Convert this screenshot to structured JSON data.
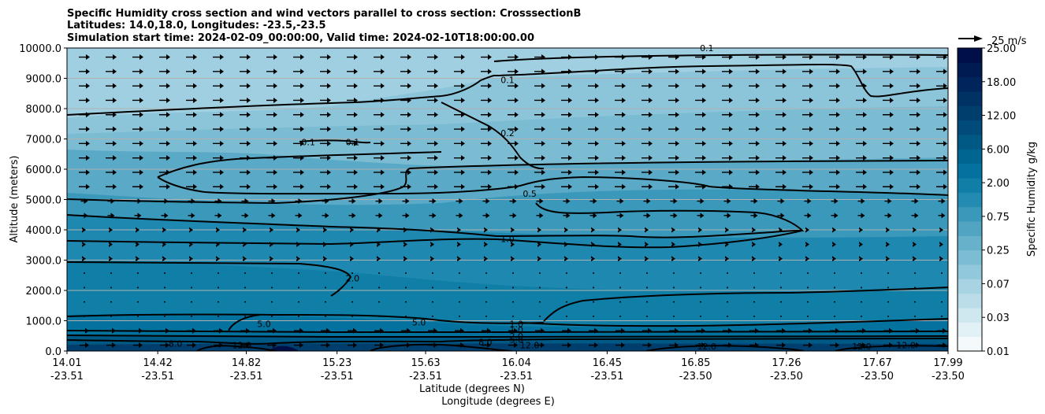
{
  "chart_data": {
    "type": "contour",
    "title_lines": [
      "Specific Humidity cross section and wind vectors parallel to cross section: CrosssectionB",
      "Latitudes: 14.0,18.0, Longitudes: -23.5,-23.5",
      "Simulation start time: 2024-02-09_00:00:00, Valid time: 2024-02-10T18:00:00.00"
    ],
    "ylabel": "Altitude (meters)",
    "xlabel_lines": [
      "Latitude (degrees N)",
      "Longitude (degrees E)"
    ],
    "ylim": [
      0,
      10000
    ],
    "y_ticks": [
      0,
      1000,
      2000,
      3000,
      4000,
      5000,
      6000,
      7000,
      8000,
      9000,
      10000
    ],
    "y_tick_labels": [
      "0.0",
      "1000.0",
      "2000.0",
      "3000.0",
      "4000.0",
      "5000.0",
      "6000.0",
      "7000.0",
      "8000.0",
      "9000.0",
      "10000.0"
    ],
    "x_ticks": [
      {
        "lat": "14.01",
        "lon": "-23.51"
      },
      {
        "lat": "14.42",
        "lon": "-23.51"
      },
      {
        "lat": "14.82",
        "lon": "-23.51"
      },
      {
        "lat": "15.23",
        "lon": "-23.51"
      },
      {
        "lat": "15.63",
        "lon": "-23.51"
      },
      {
        "lat": "16.04",
        "lon": "-23.51"
      },
      {
        "lat": "16.45",
        "lon": "-23.51"
      },
      {
        "lat": "16.85",
        "lon": "-23.50"
      },
      {
        "lat": "17.26",
        "lon": "-23.50"
      },
      {
        "lat": "17.67",
        "lon": "-23.50"
      },
      {
        "lat": "17.99",
        "lon": "-23.50"
      }
    ],
    "grid": "horizontal",
    "colorbar": {
      "label": "Specific Humidity g/kg",
      "tick_labels": [
        "25.00",
        "18.00",
        "12.00",
        "6.00",
        "2.00",
        "0.75",
        "0.25",
        "0.07",
        "0.03",
        "0.01"
      ],
      "colors": [
        "#f4fafc",
        "#e2f1f6",
        "#cfe7ef",
        "#bbdde9",
        "#a7d3e2",
        "#92c8db",
        "#7dbdd3",
        "#67b1cb",
        "#51a5c3",
        "#3a98ba",
        "#238bb1",
        "#0f7fa8",
        "#03729e",
        "#006591",
        "#005885",
        "#004b79",
        "#003e6d",
        "#003264",
        "#00245c",
        "#001a52",
        "#000f48"
      ]
    },
    "quiver_key": {
      "label": "25 m/s",
      "placement": "top-right"
    },
    "contour_labels": [
      {
        "text": "0.1",
        "x": "16.9",
        "alt": 10000
      },
      {
        "text": "0.1",
        "x": "16.0",
        "alt": 8950
      },
      {
        "text": "0.2",
        "x": "16.0",
        "alt": 7200
      },
      {
        "text": "0.1",
        "x": "15.1",
        "alt": 6900
      },
      {
        "text": "0.1",
        "x": "15.3",
        "alt": 6900
      },
      {
        "text": "0.5",
        "x": "16.1",
        "alt": 5200
      },
      {
        "text": "1.0",
        "x": "16.0",
        "alt": 3700
      },
      {
        "text": "2.0",
        "x": "15.3",
        "alt": 2400
      },
      {
        "text": "5.0",
        "x": "14.9",
        "alt": 900
      },
      {
        "text": "5.0",
        "x": "15.6",
        "alt": 950
      },
      {
        "text": "1.0",
        "x": "16.04",
        "alt": 900
      },
      {
        "text": "1.0",
        "x": "16.04",
        "alt": 700
      },
      {
        "text": "2.0",
        "x": "16.04",
        "alt": 500
      },
      {
        "text": "5.0",
        "x": "16.04",
        "alt": 380
      },
      {
        "text": "8.0",
        "x": "14.5",
        "alt": 250
      },
      {
        "text": "12.0",
        "x": "14.8",
        "alt": 200
      },
      {
        "text": "8.0",
        "x": "15.9",
        "alt": 300
      },
      {
        "text": "12.0",
        "x": "16.1",
        "alt": 200
      },
      {
        "text": "12.0",
        "x": "16.9",
        "alt": 150
      },
      {
        "text": "12.0",
        "x": "17.6",
        "alt": 150
      },
      {
        "text": "12.0",
        "x": "17.8",
        "alt": 200
      }
    ]
  }
}
